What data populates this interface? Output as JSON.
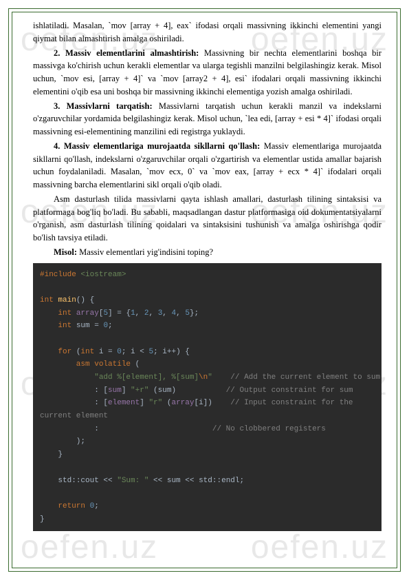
{
  "watermark": "oefen.uz",
  "paragraphs": {
    "p1": "ishlatiladi.  Masalan,  `mov  [array  +  4],  eax`  ifodasi  orqali  massivning  ikkinchi elementini yangi qiymat bilan almashtirish amalga oshiriladi.",
    "p2_label": "2. Massiv elementlarini almashtirish:",
    "p2_text": " Massivning bir nechta elementlarini boshqa bir massivga ko'chirish uchun kerakli elementlar va ularga tegishli manzilni belgilashingiz kerak. Misol uchun, `mov esi, [array + 4]` va `mov [array2 + 4], esi` ifodalari orqali massivning ikkinchi elementini o'qib esa uni boshqa bir massivning ikkinchi elementiga yozish amalga oshiriladi.",
    "p3_label": "3.  Massivlarni  tarqatish:",
    "p3_text": "  Massivlarni  tarqatish  uchun  kerakli  manzil  va indekslarni  o'zgaruvchilar  yordamida  belgilashingiz  kerak.  Misol  uchun,  `lea  edi, [array + esi * 4]` ifodasi orqali massivning esi-elementining manzilini edi registrga yuklaydi.",
    "p4_label": "4.    Massiv    elementlariga    murojaatda    sikllarni    qo'llash:",
    "p4_text": "    Massiv elementlariga    murojaatda    sikllarni    qo'llash,    indekslarni    o'zgaruvchilar    orqali o'zgartirish  va  elementlar  ustida  amallar  bajarish  uchun  foydalaniladi.  Masalan, `mov  ecx,  0`  va  `mov  eax,  [array  +  ecx  *  4]`  ifodalari  orqali  massivning  barcha elementlarini sikl orqali o'qib oladi.",
    "p5": "Asm  dasturlash  tilida  massivlarni  qayta  ishlash  amallari,  dasturlash  tilining sintaksisi    va    platformaga    bog'liq    bo'ladi.    Bu    sababli,    maqsadlangan    dastur platformasiga  oid  dokumentatsiyalarni  o'rganish,  asm  dasturlash  tilining  qoidalari va sintaksisini tushunish va amalga oshirishga qodir bo'lish tavsiya etiladi.",
    "misol_label": "Misol:",
    "misol_text": " Massiv elementlari yig'indisini toping?"
  },
  "code": {
    "line1_a": "#include",
    "line1_b": " <iostream>",
    "line3": "int",
    "line3b": " main",
    "line3c": "() {",
    "line4a": "    int",
    "line4b": " array",
    "line4c": "[",
    "line4d": "5",
    "line4e": "] = {",
    "line4f": "1",
    "line4g": ", ",
    "line4h": "2",
    "line4i": "3",
    "line4j": "4",
    "line4k": "5",
    "line4l": "};",
    "line5a": "    int",
    "line5b": " sum = ",
    "line5c": "0",
    "line5d": ";",
    "line7a": "    for",
    "line7b": " (",
    "line7c": "int",
    "line7d": " i = ",
    "line7e": "0",
    "line7f": "; i < ",
    "line7g": "5",
    "line7h": "; i++) {",
    "line8a": "        asm volatile",
    "line8b": " (",
    "line9a": "            \"add %[element], %[sum]",
    "line9b": "\\n",
    "line9c": "\"",
    "line9d": "    // Add the current element to sum",
    "line10a": "            : [",
    "line10b": "sum",
    "line10c": "] ",
    "line10d": "\"+r\"",
    "line10e": " (sum)           ",
    "line10f": "// Output constraint for sum",
    "line11a": "            : [",
    "line11b": "element",
    "line11c": "] ",
    "line11d": "\"r\"",
    "line11e": " (",
    "line11f": "array",
    "line11g": "[i])    ",
    "line11h": "// Input constraint for the",
    "line12a": "current element",
    "line13a": "            :                         ",
    "line13b": "// No clobbered registers",
    "line14": "        );",
    "line15": "    }",
    "line17a": "    std",
    "line17b": "::cout << ",
    "line17c": "\"Sum: \"",
    "line17d": " << sum << ",
    "line17e": "std",
    "line17f": "::endl;",
    "line19a": "    return ",
    "line19b": "0",
    "line19c": ";",
    "line20": "}"
  },
  "colors": {
    "border": "#3a6b2e",
    "code_bg": "#2b2b2b",
    "code_fg": "#a9b7c6",
    "keyword": "#cc7832",
    "string": "#6a8759",
    "number": "#6897bb",
    "comment": "#808080",
    "func": "#ffc66d",
    "var": "#9876aa",
    "watermark": "#e8e8e8"
  }
}
